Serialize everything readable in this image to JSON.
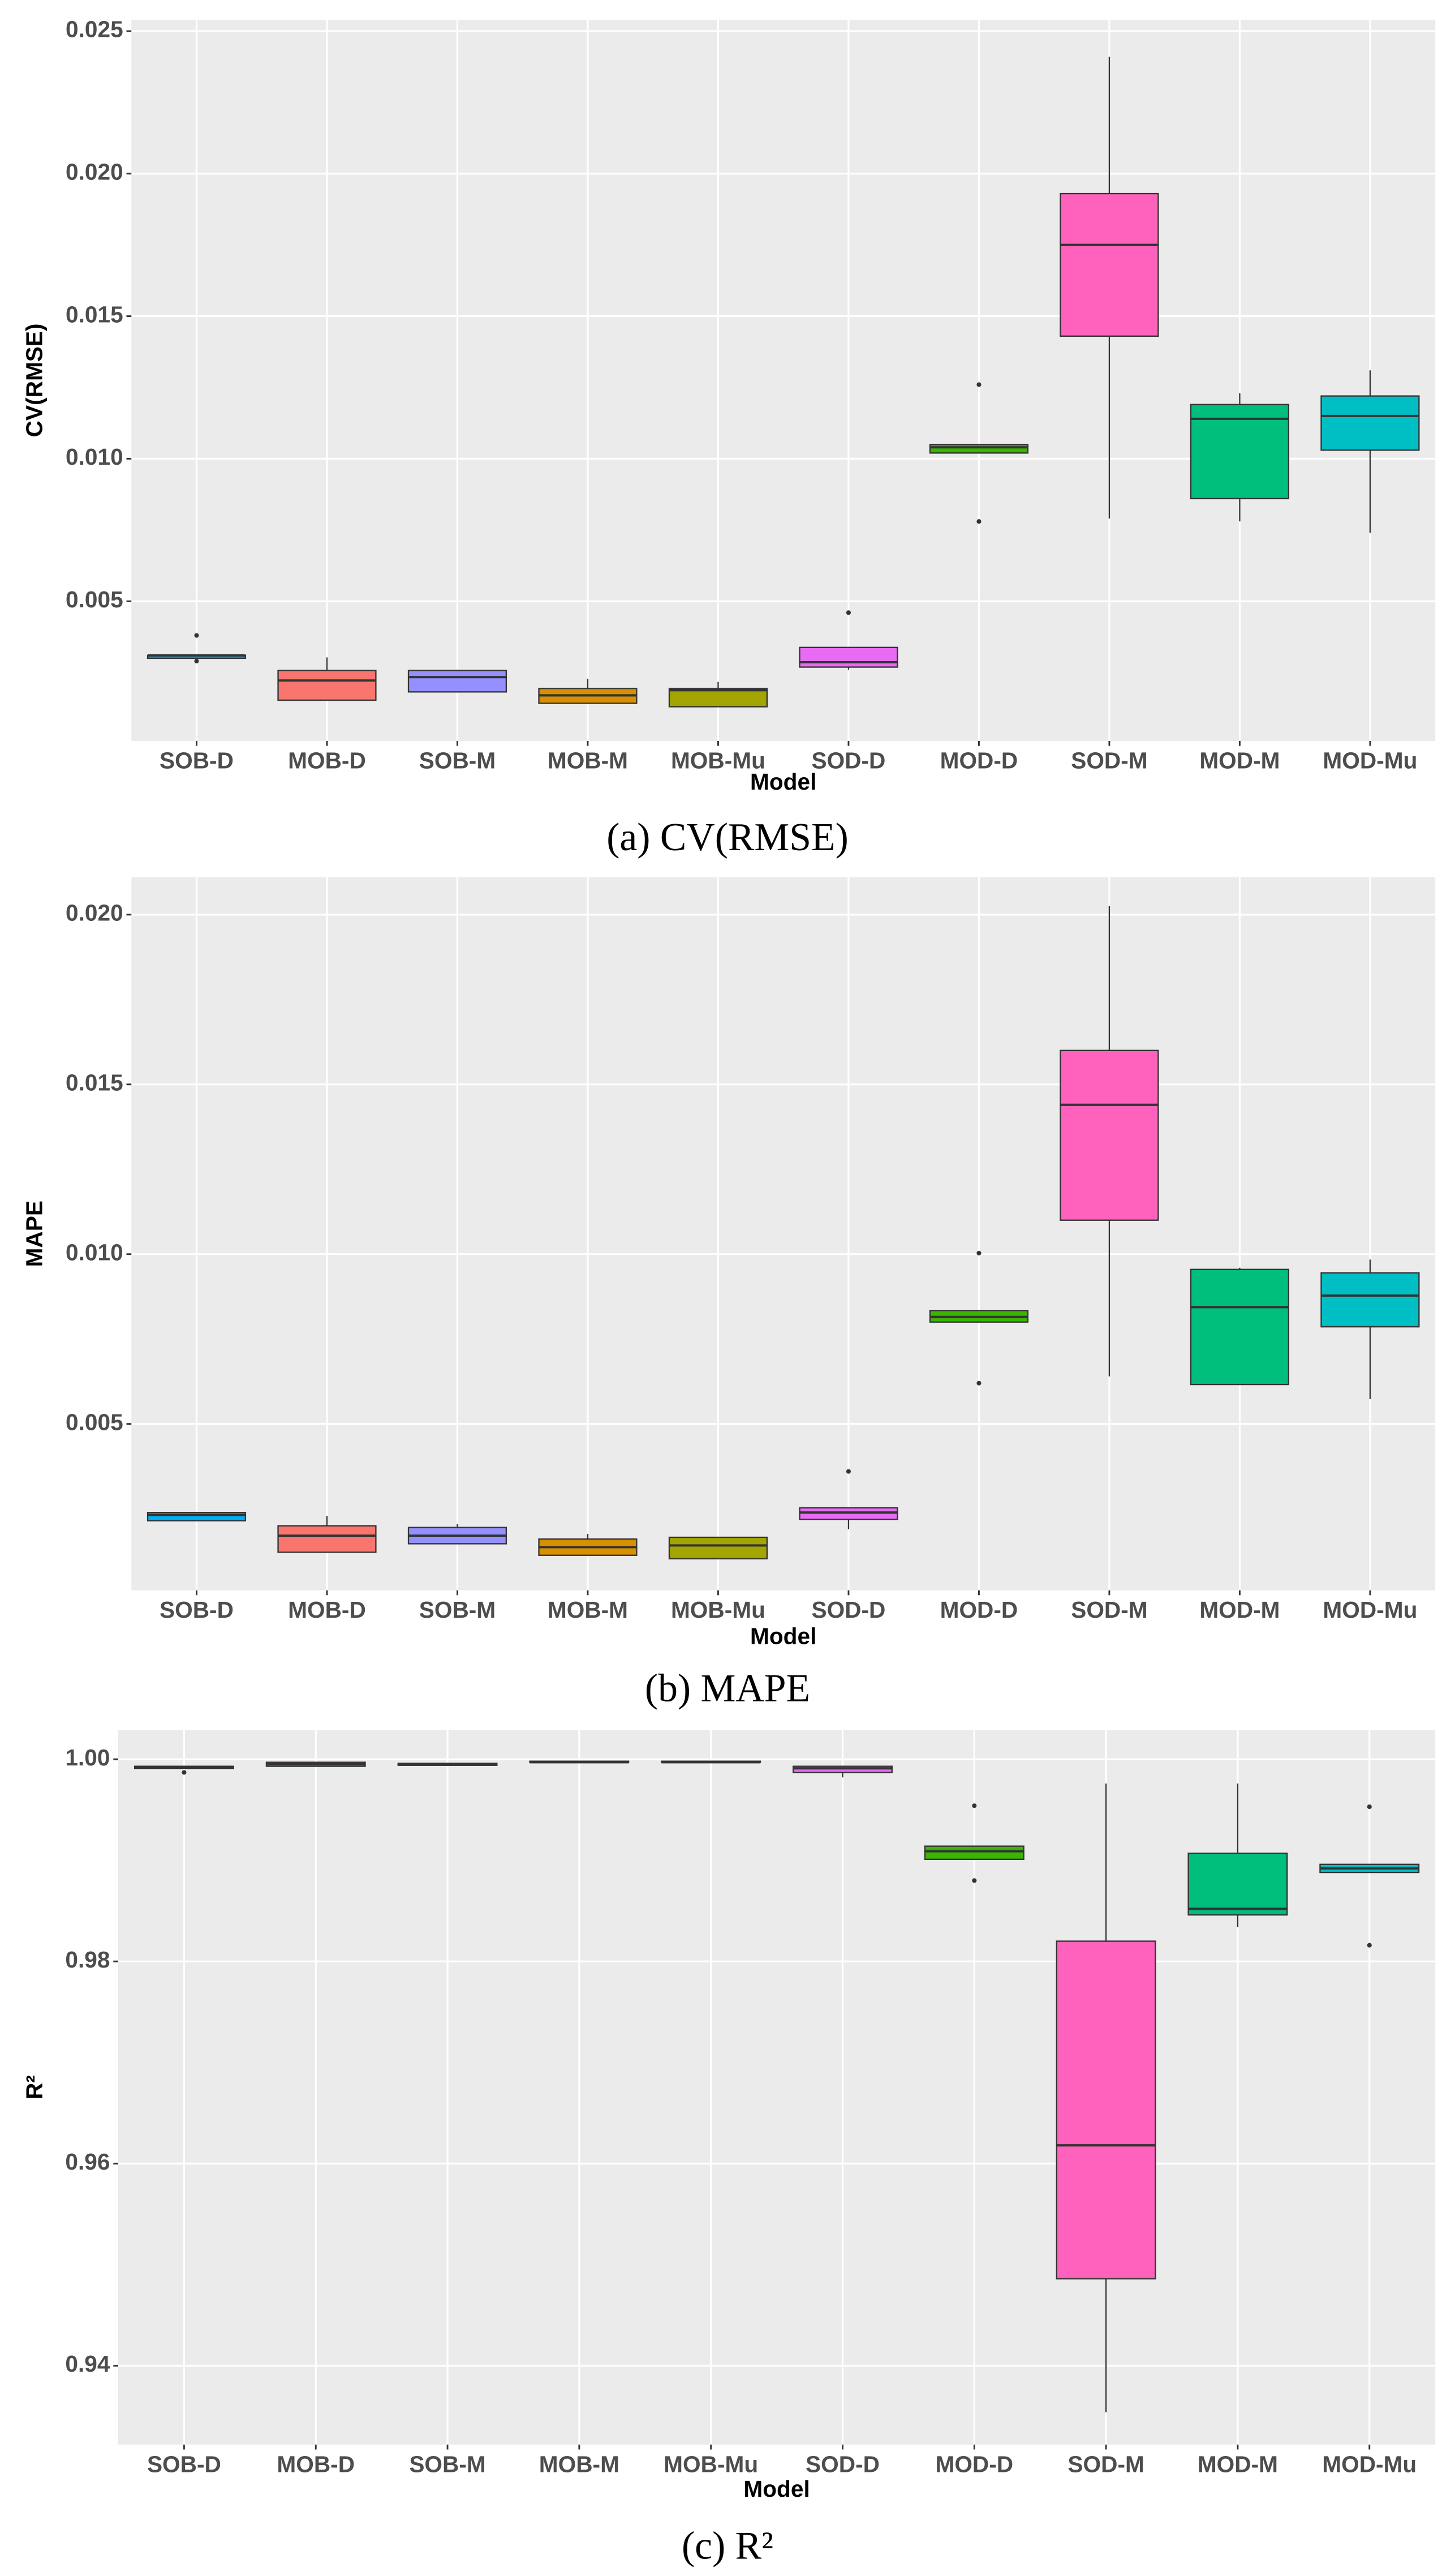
{
  "chart_data": [
    {
      "type": "box",
      "caption": "(a) CV(RMSE)",
      "x_label": "Model",
      "y_label": "CV(RMSE)",
      "categories": [
        "SOB-D",
        "MOB-D",
        "SOB-M",
        "MOB-M",
        "MOB-Mu",
        "SOD-D",
        "MOD-D",
        "SOD-M",
        "MOD-M",
        "MOD-Mu"
      ],
      "colors": [
        "#00B0F6",
        "#F8766D",
        "#9590FF",
        "#D89000",
        "#A3A500",
        "#E76BF3",
        "#39B600",
        "#FF62BC",
        "#00BF7D",
        "#00BFC4"
      ],
      "ylim": [
        0.0001,
        0.0254
      ],
      "yticks": [
        0.005,
        {
          "value": 0.01,
          "label": "0.010"
        },
        0.015,
        {
          "value": 0.02,
          "label": "0.020"
        },
        0.025
      ],
      "grid": true,
      "boxes": [
        {
          "low": 0.003,
          "q1": 0.003,
          "median": 0.0031,
          "q3": 0.0031,
          "high": 0.0031,
          "outliers": [
            0.0038,
            0.0029
          ]
        },
        {
          "low": 0.00153,
          "q1": 0.00153,
          "median": 0.00222,
          "q3": 0.00257,
          "high": 0.00303,
          "outliers": []
        },
        {
          "low": 0.00182,
          "q1": 0.00182,
          "median": 0.00234,
          "q3": 0.00257,
          "high": 0.0026,
          "outliers": []
        },
        {
          "low": 0.0014,
          "q1": 0.00142,
          "median": 0.0017,
          "q3": 0.00194,
          "high": 0.00228,
          "outliers": []
        },
        {
          "low": 0.0013,
          "q1": 0.0013,
          "median": 0.00188,
          "q3": 0.00194,
          "high": 0.00217,
          "outliers": []
        },
        {
          "low": 0.0026,
          "q1": 0.00269,
          "median": 0.00286,
          "q3": 0.00338,
          "high": 0.0034,
          "outliers": [
            0.0046
          ]
        },
        {
          "low": 0.0102,
          "q1": 0.0102,
          "median": 0.0104,
          "q3": 0.0105,
          "high": 0.0105,
          "outliers": [
            0.0126,
            0.0078
          ]
        },
        {
          "low": 0.0079,
          "q1": 0.0143,
          "median": 0.0175,
          "q3": 0.0193,
          "high": 0.0241,
          "outliers": []
        },
        {
          "low": 0.0078,
          "q1": 0.0086,
          "median": 0.0114,
          "q3": 0.0119,
          "high": 0.0123,
          "outliers": []
        },
        {
          "low": 0.0074,
          "q1": 0.0103,
          "median": 0.0115,
          "q3": 0.0122,
          "high": 0.0131,
          "outliers": []
        }
      ]
    },
    {
      "type": "box",
      "caption": "(b) MAPE",
      "x_label": "Model",
      "y_label": "MAPE",
      "categories": [
        "SOB-D",
        "MOB-D",
        "SOB-M",
        "MOB-M",
        "MOB-Mu",
        "SOD-D",
        "MOD-D",
        "SOD-M",
        "MOD-M",
        "MOD-Mu"
      ],
      "colors": [
        "#00B0F6",
        "#F8766D",
        "#9590FF",
        "#D89000",
        "#A3A500",
        "#E76BF3",
        "#39B600",
        "#FF62BC",
        "#00BF7D",
        "#00BFC4"
      ],
      "ylim": [
        0.0001,
        0.0211
      ],
      "yticks": [
        0.005,
        {
          "value": 0.01,
          "label": "0.010"
        },
        0.015,
        {
          "value": 0.02,
          "label": "0.020"
        }
      ],
      "grid": true,
      "boxes": [
        {
          "low": 0.00215,
          "q1": 0.00215,
          "median": 0.00232,
          "q3": 0.00239,
          "high": 0.00239,
          "outliers": []
        },
        {
          "low": 0.00122,
          "q1": 0.00122,
          "median": 0.00171,
          "q3": 0.002,
          "high": 0.00229,
          "outliers": []
        },
        {
          "low": 0.00147,
          "q1": 0.00147,
          "median": 0.00171,
          "q3": 0.00195,
          "high": 0.00205,
          "outliers": []
        },
        {
          "low": 0.00113,
          "q1": 0.00113,
          "median": 0.00137,
          "q3": 0.00161,
          "high": 0.00176,
          "outliers": []
        },
        {
          "low": 0.00103,
          "q1": 0.00103,
          "median": 0.00142,
          "q3": 0.00166,
          "high": 0.00166,
          "outliers": []
        },
        {
          "low": 0.0019,
          "q1": 0.00219,
          "median": 0.00239,
          "q3": 0.00253,
          "high": 0.00253,
          "outliers": [
            0.0036
          ]
        },
        {
          "low": 0.008,
          "q1": 0.008,
          "median": 0.00815,
          "q3": 0.00834,
          "high": 0.00834,
          "outliers": [
            0.01003,
            0.0062
          ]
        },
        {
          "low": 0.0064,
          "q1": 0.011,
          "median": 0.0144,
          "q3": 0.016,
          "high": 0.02025,
          "outliers": []
        },
        {
          "low": 0.00616,
          "q1": 0.00616,
          "median": 0.00844,
          "q3": 0.00955,
          "high": 0.0096,
          "outliers": []
        },
        {
          "low": 0.00573,
          "q1": 0.00786,
          "median": 0.00878,
          "q3": 0.00945,
          "high": 0.00984,
          "outliers": []
        }
      ]
    },
    {
      "type": "box",
      "caption": "(c) R²",
      "x_label": "Model",
      "y_label": "R²",
      "categories": [
        "SOB-D",
        "MOB-D",
        "SOB-M",
        "MOB-M",
        "MOB-Mu",
        "SOD-D",
        "MOD-D",
        "SOD-M",
        "MOD-M",
        "MOD-Mu"
      ],
      "colors": [
        "#00B0F6",
        "#F8766D",
        "#9590FF",
        "#D89000",
        "#A3A500",
        "#E76BF3",
        "#39B600",
        "#FF62BC",
        "#00BF7D",
        "#00BFC4"
      ],
      "ylim": [
        0.9322,
        1.0029
      ],
      "yticks": [
        0.94,
        0.96,
        0.98,
        {
          "value": 1,
          "label": "1.00"
        }
      ],
      "grid": true,
      "boxes": [
        {
          "low": 0.9991,
          "q1": 0.9991,
          "median": 0.9992,
          "q3": 0.9993,
          "high": 0.9993,
          "outliers": [
            0.9987
          ]
        },
        {
          "low": 0.9993,
          "q1": 0.9993,
          "median": 0.9995,
          "q3": 0.9997,
          "high": 0.9997,
          "outliers": []
        },
        {
          "low": 0.9994,
          "q1": 0.9994,
          "median": 0.9995,
          "q3": 0.9996,
          "high": 0.9996,
          "outliers": []
        },
        {
          "low": 0.9997,
          "q1": 0.9997,
          "median": 0.9997,
          "q3": 0.9998,
          "high": 0.9998,
          "outliers": []
        },
        {
          "low": 0.9997,
          "q1": 0.9997,
          "median": 0.9997,
          "q3": 0.9998,
          "high": 0.9998,
          "outliers": []
        },
        {
          "low": 0.9982,
          "q1": 0.9987,
          "median": 0.9991,
          "q3": 0.9993,
          "high": 0.9993,
          "outliers": []
        },
        {
          "low": 0.9901,
          "q1": 0.9901,
          "median": 0.9909,
          "q3": 0.9914,
          "high": 0.9914,
          "outliers": [
            0.9954,
            0.988
          ]
        },
        {
          "low": 0.9354,
          "q1": 0.9486,
          "median": 0.9618,
          "q3": 0.982,
          "high": 0.9976,
          "outliers": []
        },
        {
          "low": 0.9834,
          "q1": 0.9846,
          "median": 0.9852,
          "q3": 0.9907,
          "high": 0.9976,
          "outliers": []
        },
        {
          "low": 0.9888,
          "q1": 0.9888,
          "median": 0.9892,
          "q3": 0.9896,
          "high": 0.9896,
          "outliers": [
            0.9953,
            0.9816
          ]
        }
      ]
    }
  ]
}
